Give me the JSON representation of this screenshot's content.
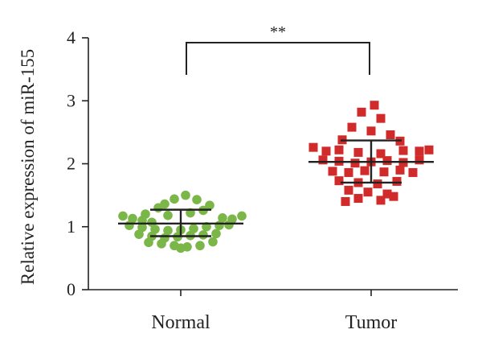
{
  "chart_data": {
    "type": "scatter",
    "ylabel": "Relative expression of miR-155",
    "xlabel": "",
    "ylim": [
      0,
      4
    ],
    "yticks": [
      "0",
      "1",
      "2",
      "3",
      "4"
    ],
    "categories": [
      "Normal",
      "Tumor"
    ],
    "significance": "**",
    "grid": false,
    "series": [
      {
        "category": "Normal",
        "marker": "circle",
        "color": "#7ab648",
        "mean": 1.05,
        "sd_upper": 1.27,
        "sd_lower": 0.85,
        "points": [
          {
            "x": -0.36,
            "y": 1.17
          },
          {
            "x": -0.3,
            "y": 1.13
          },
          {
            "x": -0.24,
            "y": 1.1
          },
          {
            "x": -0.18,
            "y": 1.07
          },
          {
            "x": -0.14,
            "y": 1.3
          },
          {
            "x": -0.1,
            "y": 1.36
          },
          {
            "x": -0.04,
            "y": 1.44
          },
          {
            "x": 0.03,
            "y": 1.5
          },
          {
            "x": 0.1,
            "y": 1.43
          },
          {
            "x": 0.18,
            "y": 1.34
          },
          {
            "x": 0.26,
            "y": 1.14
          },
          {
            "x": 0.32,
            "y": 1.12
          },
          {
            "x": 0.38,
            "y": 1.17
          },
          {
            "x": -0.32,
            "y": 1.02
          },
          {
            "x": -0.24,
            "y": 0.99
          },
          {
            "x": -0.16,
            "y": 0.96
          },
          {
            "x": -0.08,
            "y": 0.94
          },
          {
            "x": 0.0,
            "y": 0.95
          },
          {
            "x": 0.08,
            "y": 0.97
          },
          {
            "x": 0.16,
            "y": 1.0
          },
          {
            "x": 0.24,
            "y": 1.02
          },
          {
            "x": 0.3,
            "y": 1.03
          },
          {
            "x": -0.26,
            "y": 0.88
          },
          {
            "x": -0.18,
            "y": 0.85
          },
          {
            "x": -0.1,
            "y": 0.82
          },
          {
            "x": -0.02,
            "y": 0.84
          },
          {
            "x": 0.06,
            "y": 0.86
          },
          {
            "x": 0.14,
            "y": 0.87
          },
          {
            "x": 0.22,
            "y": 0.89
          },
          {
            "x": -0.2,
            "y": 0.75
          },
          {
            "x": -0.12,
            "y": 0.73
          },
          {
            "x": -0.04,
            "y": 0.7
          },
          {
            "x": 0.04,
            "y": 0.68
          },
          {
            "x": 0.12,
            "y": 0.7
          },
          {
            "x": 0.2,
            "y": 0.76
          },
          {
            "x": -0.08,
            "y": 1.18
          },
          {
            "x": 0.06,
            "y": 1.22
          },
          {
            "x": 0.14,
            "y": 1.26
          },
          {
            "x": -0.22,
            "y": 1.2
          },
          {
            "x": 0.0,
            "y": 0.66
          }
        ]
      },
      {
        "category": "Tumor",
        "marker": "square",
        "color": "#d12a2a",
        "mean": 2.03,
        "sd_upper": 2.37,
        "sd_lower": 1.7,
        "points": [
          {
            "x": 0.02,
            "y": 2.93
          },
          {
            "x": -0.06,
            "y": 2.82
          },
          {
            "x": 0.06,
            "y": 2.72
          },
          {
            "x": -0.12,
            "y": 2.58
          },
          {
            "x": 0.0,
            "y": 2.52
          },
          {
            "x": 0.12,
            "y": 2.46
          },
          {
            "x": -0.18,
            "y": 2.38
          },
          {
            "x": 0.18,
            "y": 2.36
          },
          {
            "x": -0.36,
            "y": 2.26
          },
          {
            "x": -0.28,
            "y": 2.2
          },
          {
            "x": -0.2,
            "y": 2.22
          },
          {
            "x": -0.08,
            "y": 2.18
          },
          {
            "x": 0.06,
            "y": 2.16
          },
          {
            "x": 0.2,
            "y": 2.21
          },
          {
            "x": 0.3,
            "y": 2.2
          },
          {
            "x": 0.36,
            "y": 2.22
          },
          {
            "x": -0.3,
            "y": 2.06
          },
          {
            "x": -0.2,
            "y": 2.04
          },
          {
            "x": -0.1,
            "y": 2.01
          },
          {
            "x": 0.0,
            "y": 2.03
          },
          {
            "x": 0.1,
            "y": 2.05
          },
          {
            "x": 0.2,
            "y": 2.02
          },
          {
            "x": 0.3,
            "y": 2.06
          },
          {
            "x": -0.24,
            "y": 1.88
          },
          {
            "x": -0.14,
            "y": 1.86
          },
          {
            "x": -0.04,
            "y": 1.89
          },
          {
            "x": 0.08,
            "y": 1.87
          },
          {
            "x": 0.18,
            "y": 1.9
          },
          {
            "x": 0.26,
            "y": 1.86
          },
          {
            "x": -0.2,
            "y": 1.73
          },
          {
            "x": -0.08,
            "y": 1.7
          },
          {
            "x": 0.04,
            "y": 1.68
          },
          {
            "x": 0.16,
            "y": 1.72
          },
          {
            "x": -0.14,
            "y": 1.58
          },
          {
            "x": -0.02,
            "y": 1.55
          },
          {
            "x": 0.1,
            "y": 1.52
          },
          {
            "x": -0.08,
            "y": 1.45
          },
          {
            "x": 0.06,
            "y": 1.42
          },
          {
            "x": -0.16,
            "y": 1.4
          },
          {
            "x": 0.14,
            "y": 1.48
          }
        ]
      }
    ]
  }
}
